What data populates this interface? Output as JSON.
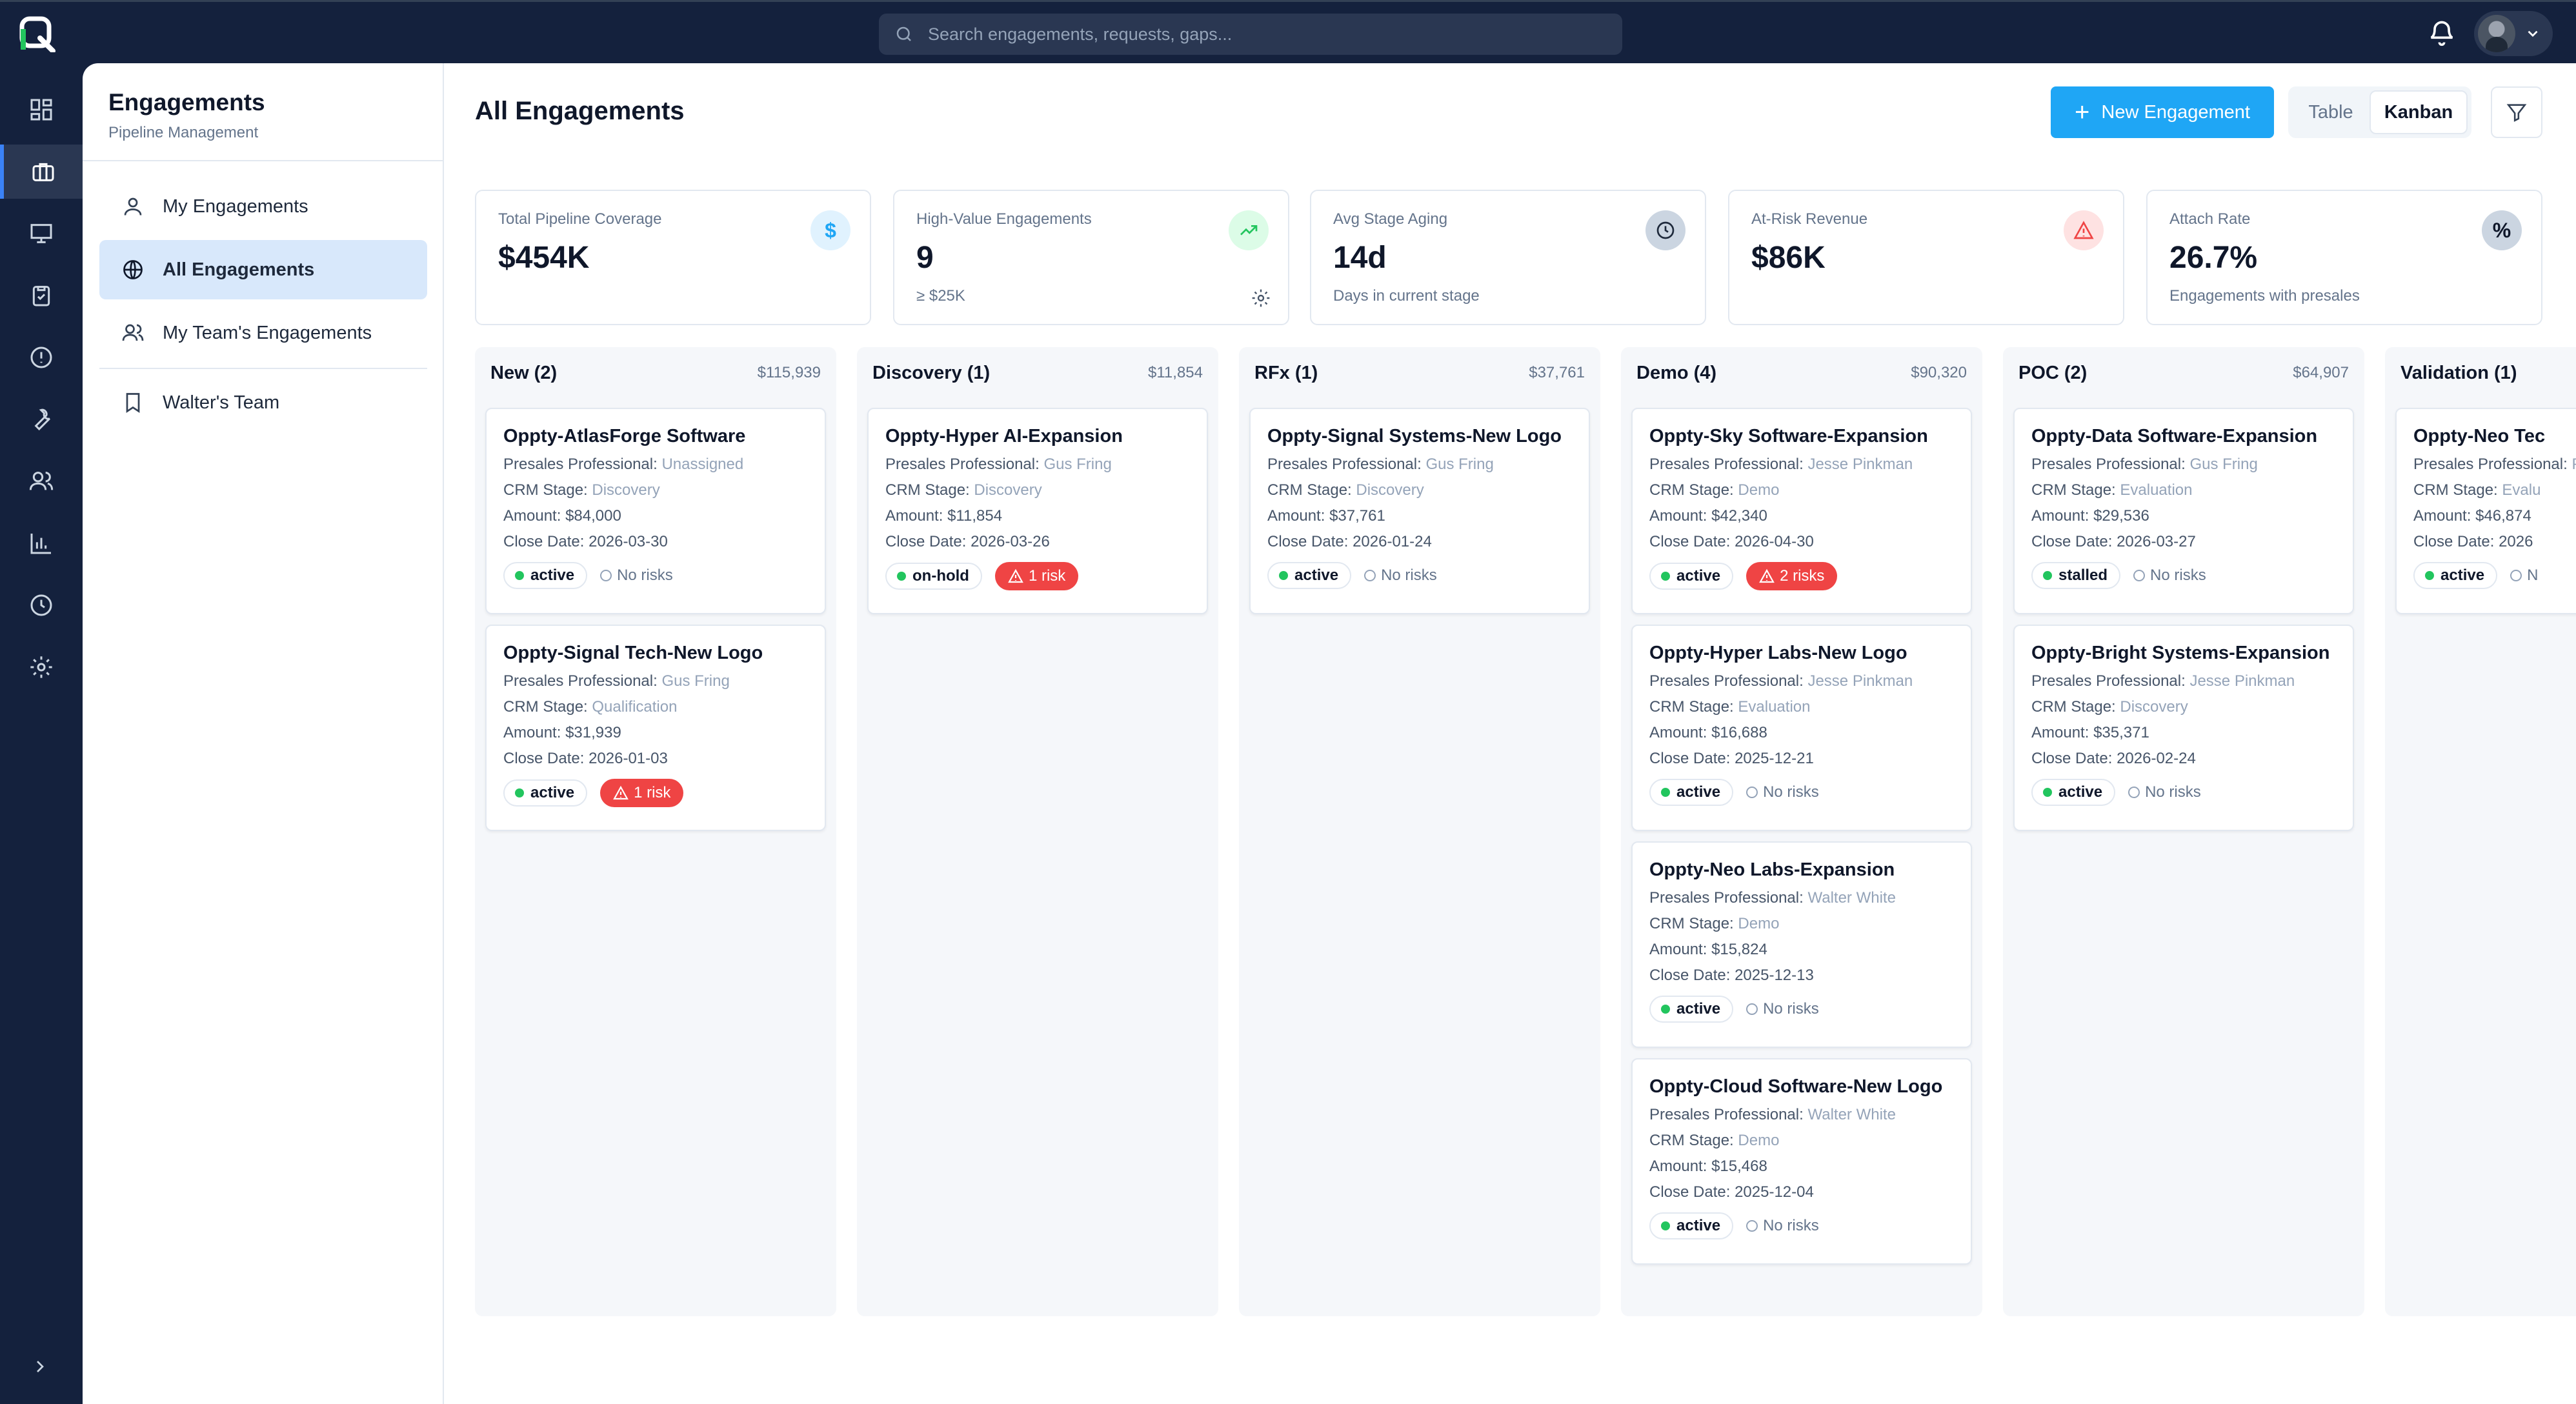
{
  "topbar": {
    "search_placeholder": "Search engagements, requests, gaps...",
    "icons": [
      "logo-icon",
      "search-icon",
      "bell-icon",
      "avatar",
      "chevron-down-icon"
    ]
  },
  "rail": {
    "items": [
      "dashboard-icon",
      "briefcase-icon",
      "presentation-icon",
      "clipboard-check-icon",
      "alert-circle-icon",
      "wrench-icon",
      "users-icon",
      "bar-chart-icon",
      "clock-icon",
      "settings-icon"
    ],
    "active": "briefcase-icon"
  },
  "sidebar": {
    "title": "Engagements",
    "subtitle": "Pipeline Management",
    "items": [
      {
        "label": "My Engagements",
        "icon": "user-icon"
      },
      {
        "label": "All Engagements",
        "icon": "globe-icon",
        "active": true
      },
      {
        "label": "My Team's Engagements",
        "icon": "users-icon"
      },
      {
        "label": "Walter's Team",
        "icon": "bookmark-icon"
      }
    ]
  },
  "main": {
    "title": "All Engagements",
    "new_button": "New Engagement",
    "view_table": "Table",
    "view_kanban": "Kanban",
    "active_view": "Kanban"
  },
  "kpis": [
    {
      "label": "Total Pipeline Coverage",
      "value": "$454K",
      "sub": "",
      "icon": "dollar-icon"
    },
    {
      "label": "High-Value Engagements",
      "value": "9",
      "sub": "≥ $25K",
      "icon": "trending-up-icon"
    },
    {
      "label": "Avg Stage Aging",
      "value": "14d",
      "sub": "Days in current stage",
      "icon": "clock-icon"
    },
    {
      "label": "At-Risk Revenue",
      "value": "$86K",
      "sub": "",
      "icon": "alert-triangle-icon"
    },
    {
      "label": "Attach Rate",
      "value": "26.7%",
      "sub": "Engagements with presales",
      "icon": "percent-icon"
    }
  ],
  "labels": {
    "presales": "Presales Professional:",
    "stage": "CRM Stage:",
    "amount": "Amount:",
    "close": "Close Date:",
    "no_risks": "No risks"
  },
  "columns": [
    {
      "title": "New (2)",
      "total": "$115,939",
      "cards": [
        {
          "title": "Oppty-AtlasForge Software",
          "presales": "Unassigned",
          "stage": "Discovery",
          "amount": "$84,000",
          "close": "2026-03-30",
          "status": "active",
          "risk": ""
        },
        {
          "title": "Oppty-Signal Tech-New Logo",
          "presales": "Gus Fring",
          "stage": "Qualification",
          "amount": "$31,939",
          "close": "2026-01-03",
          "status": "active",
          "risk": "1 risk"
        }
      ]
    },
    {
      "title": "Discovery (1)",
      "total": "$11,854",
      "cards": [
        {
          "title": "Oppty-Hyper AI-Expansion",
          "presales": "Gus Fring",
          "stage": "Discovery",
          "amount": "$11,854",
          "close": "2026-03-26",
          "status": "on-hold",
          "risk": "1 risk"
        }
      ]
    },
    {
      "title": "RFx (1)",
      "total": "$37,761",
      "cards": [
        {
          "title": "Oppty-Signal Systems-New Logo",
          "presales": "Gus Fring",
          "stage": "Discovery",
          "amount": "$37,761",
          "close": "2026-01-24",
          "status": "active",
          "risk": ""
        }
      ]
    },
    {
      "title": "Demo (4)",
      "total": "$90,320",
      "cards": [
        {
          "title": "Oppty-Sky Software-Expansion",
          "presales": "Jesse Pinkman",
          "stage": "Demo",
          "amount": "$42,340",
          "close": "2026-04-30",
          "status": "active",
          "risk": "2 risks"
        },
        {
          "title": "Oppty-Hyper Labs-New Logo",
          "presales": "Jesse Pinkman",
          "stage": "Evaluation",
          "amount": "$16,688",
          "close": "2025-12-21",
          "status": "active",
          "risk": ""
        },
        {
          "title": "Oppty-Neo Labs-Expansion",
          "presales": "Walter White",
          "stage": "Demo",
          "amount": "$15,824",
          "close": "2025-12-13",
          "status": "active",
          "risk": ""
        },
        {
          "title": "Oppty-Cloud Software-New Logo",
          "presales": "Walter White",
          "stage": "Demo",
          "amount": "$15,468",
          "close": "2025-12-04",
          "status": "active",
          "risk": ""
        }
      ]
    },
    {
      "title": "POC (2)",
      "total": "$64,907",
      "cards": [
        {
          "title": "Oppty-Data Software-Expansion",
          "presales": "Gus Fring",
          "stage": "Evaluation",
          "amount": "$29,536",
          "close": "2026-03-27",
          "status": "stalled",
          "risk": ""
        },
        {
          "title": "Oppty-Bright Systems-Expansion",
          "presales": "Jesse Pinkman",
          "stage": "Discovery",
          "amount": "$35,371",
          "close": "2026-02-24",
          "status": "active",
          "risk": ""
        }
      ]
    },
    {
      "title": "Validation (1)",
      "total": "",
      "cards": [
        {
          "title": "Oppty-Neo Tec",
          "presales": "Professi",
          "stage": "Evalu",
          "amount": "$46,874",
          "close": "2026",
          "status": "active",
          "risk": "",
          "truncated_norisk": "N"
        }
      ]
    }
  ],
  "colors": {
    "accent": "#1fa6f5",
    "nav": "#14213d",
    "active_dot": "#22c55e",
    "risk": "#ef4444"
  }
}
